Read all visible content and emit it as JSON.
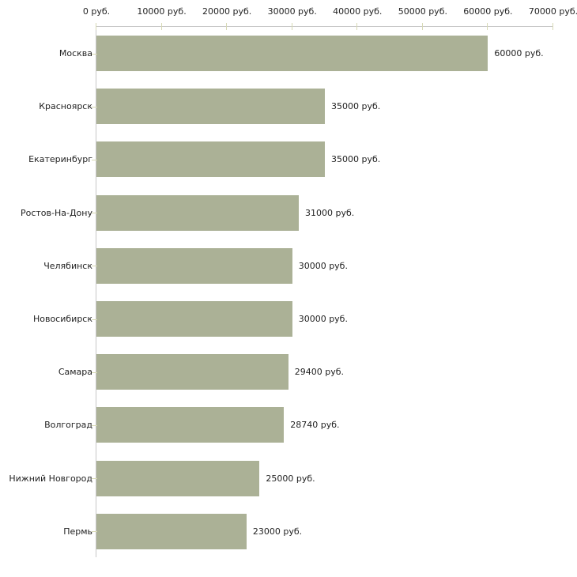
{
  "chart_data": {
    "type": "bar",
    "orientation": "horizontal",
    "title": "",
    "xlabel": "",
    "ylabel": "",
    "unit": "руб.",
    "categories": [
      "Москва",
      "Красноярск",
      "Екатеринбург",
      "Ростов-На-Дону",
      "Челябинск",
      "Новосибирск",
      "Самара",
      "Волгоград",
      "Нижний Новгород",
      "Пермь"
    ],
    "values": [
      60000,
      35000,
      35000,
      31000,
      30000,
      30000,
      29400,
      28740,
      25000,
      23000
    ],
    "value_labels": [
      "60000 руб.",
      "35000 руб.",
      "35000 руб.",
      "31000 руб.",
      "30000 руб.",
      "30000 руб.",
      "29400 руб.",
      "28740 руб.",
      "25000 руб.",
      "23000 руб."
    ],
    "x_axis": {
      "position": "top",
      "min": 0,
      "max": 70000,
      "ticks": [
        0,
        10000,
        20000,
        30000,
        40000,
        50000,
        60000,
        70000
      ],
      "tick_labels": [
        "0 руб.",
        "10000 руб.",
        "20000 руб.",
        "30000 руб.",
        "40000 руб.",
        "50000 руб.",
        "60000 руб.",
        "70000 руб."
      ]
    },
    "grid": false,
    "legend": false,
    "colors": {
      "bar": "#abb196",
      "axis": "#c8c8c8",
      "tick": "#d7d9b5",
      "text": "#222222",
      "background": "#ffffff"
    }
  }
}
